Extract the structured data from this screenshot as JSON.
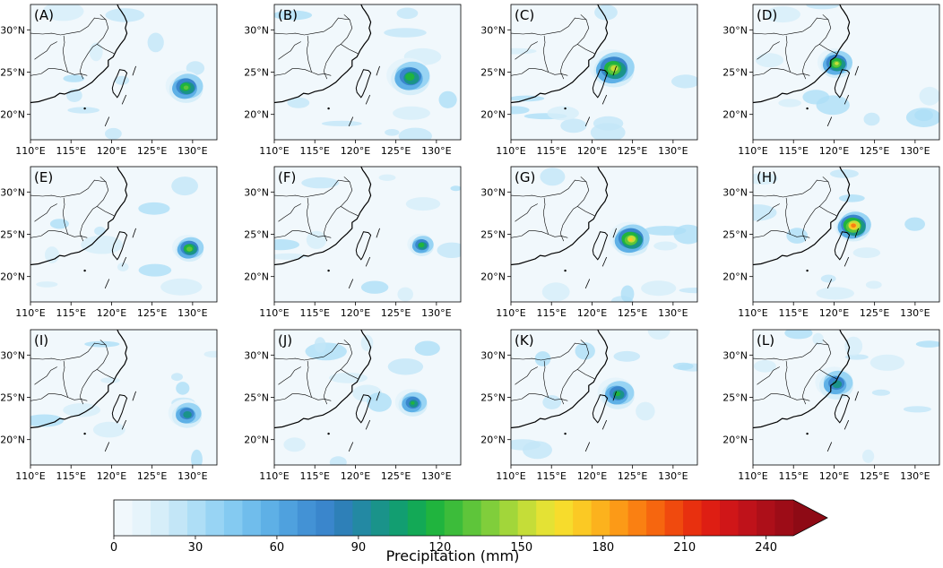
{
  "panels": [
    {
      "label": "(A)",
      "storm": {
        "lon": 129.2,
        "lat": 23.2,
        "peak_mm": 140,
        "radius_deg": 2.4
      }
    },
    {
      "label": "(B)",
      "storm": {
        "lon": 126.8,
        "lat": 24.4,
        "peak_mm": 130,
        "radius_deg": 2.8
      }
    },
    {
      "label": "(C)",
      "storm": {
        "lon": 122.7,
        "lat": 25.4,
        "peak_mm": 170,
        "radius_deg": 2.8
      }
    },
    {
      "label": "(D)",
      "storm": {
        "lon": 120.3,
        "lat": 26.0,
        "peak_mm": 160,
        "radius_deg": 2.2
      }
    },
    {
      "label": "(E)",
      "storm": {
        "lon": 129.6,
        "lat": 23.3,
        "peak_mm": 150,
        "radius_deg": 2.0
      }
    },
    {
      "label": "(F)",
      "storm": {
        "lon": 128.2,
        "lat": 23.7,
        "peak_mm": 130,
        "radius_deg": 1.7
      }
    },
    {
      "label": "(G)",
      "storm": {
        "lon": 124.8,
        "lat": 24.4,
        "peak_mm": 180,
        "radius_deg": 2.5
      }
    },
    {
      "label": "(H)",
      "storm": {
        "lon": 122.4,
        "lat": 26.0,
        "peak_mm": 210,
        "radius_deg": 2.3
      }
    },
    {
      "label": "(I)",
      "storm": {
        "lon": 129.3,
        "lat": 23.0,
        "peak_mm": 110,
        "radius_deg": 2.2
      }
    },
    {
      "label": "(J)",
      "storm": {
        "lon": 127.1,
        "lat": 24.3,
        "peak_mm": 115,
        "radius_deg": 2.1
      }
    },
    {
      "label": "(K)",
      "storm": {
        "lon": 123.2,
        "lat": 25.4,
        "peak_mm": 120,
        "radius_deg": 2.4
      }
    },
    {
      "label": "(L)",
      "storm": {
        "lon": 120.3,
        "lat": 26.6,
        "peak_mm": 110,
        "radius_deg": 2.5
      }
    }
  ],
  "axes": {
    "lon_range": [
      110,
      133
    ],
    "lat_range": [
      17,
      33
    ],
    "lon_ticks": [
      "110°E",
      "115°E",
      "120°E",
      "125°E",
      "130°E"
    ],
    "lon_tick_values": [
      110,
      115,
      120,
      125,
      130
    ],
    "lat_ticks": [
      "20°N",
      "25°N",
      "30°N"
    ],
    "lat_tick_values": [
      20,
      25,
      30
    ]
  },
  "colorbar": {
    "label": "Precipitation (mm)",
    "min": 0,
    "max": 250,
    "ticks": [
      "0",
      "30",
      "60",
      "90",
      "120",
      "150",
      "180",
      "210",
      "240"
    ],
    "tick_values": [
      0,
      30,
      60,
      90,
      120,
      150,
      180,
      210,
      240
    ],
    "extend": "max",
    "colors": [
      "#f1f8fc",
      "#e6f4fb",
      "#d6eef9",
      "#c3e6f7",
      "#aedef6",
      "#98d4f4",
      "#84caf1",
      "#70bdec",
      "#5eb0e6",
      "#4fa1de",
      "#4392d5",
      "#3a86cc",
      "#2e80b8",
      "#2389a3",
      "#1a938a",
      "#129e71",
      "#13a956",
      "#20b43e",
      "#3cbc3a",
      "#5ec53a",
      "#80ce3b",
      "#a2d63a",
      "#c5dd38",
      "#e4e234",
      "#f7dc2c",
      "#fbc924",
      "#fcb21d",
      "#fc9a17",
      "#fa8012",
      "#f6660f",
      "#f04a0e",
      "#e8300f",
      "#de1e13",
      "#d01618",
      "#bf121a",
      "#ad0f19",
      "#9d0c17"
    ],
    "over_color": "#8e0a15"
  }
}
